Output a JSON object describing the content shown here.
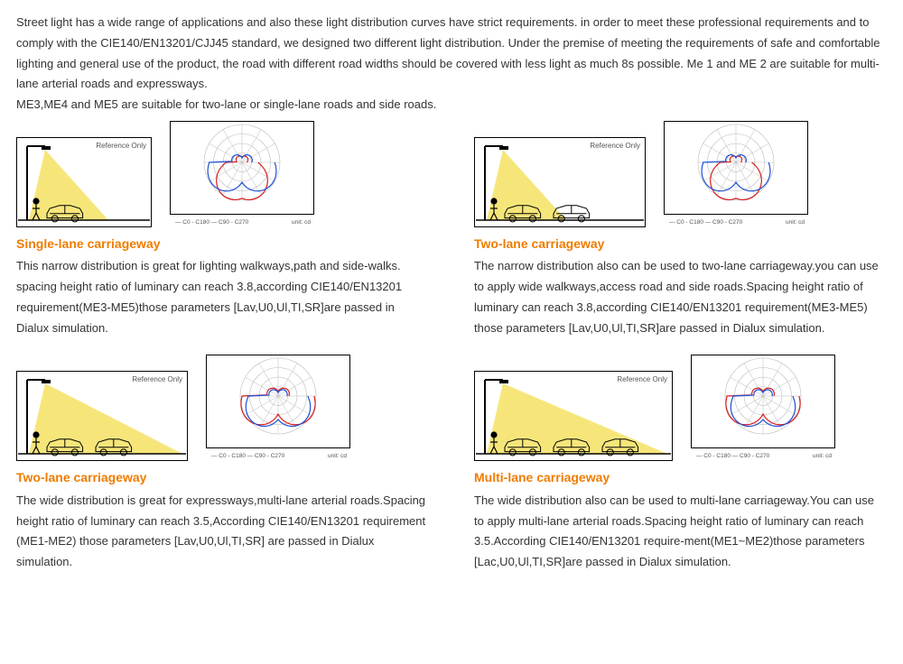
{
  "intro": "Street light has a wide range of applications and also these light distribution curves have strict requirements. in order to meet these professional requirements and to comply with the CIE140/EN13201/CJJ45 standard, we designed two different light distribution. Under the premise of meeting the requirements of safe and comfortable lighting and general use of the product, the road with different road widths should be covered with less light as much 8s possible. Me 1 and ME 2 are suitable for multi-lane arterial roads and expressways.\nME3,ME4 and ME5 are suitable for two-lane or single-lane roads and side roads.",
  "ref_label": "Reference Only",
  "polar_caption_left": "— C0 - C180  — C90 - C270",
  "polar_caption_right": "unit: cd",
  "colors": {
    "heading": "#ef7c00",
    "text": "#333333",
    "light_fill": "#f6e67a",
    "pole": "#000000",
    "polar_grid": "#bbbbbb",
    "polar_frame": "#000000",
    "curve_red": "#d81e1e",
    "curve_blue": "#1e4fd8"
  },
  "cells": [
    {
      "title": "Single-lane carriageway",
      "cars": 1,
      "beam": "narrow",
      "illu_w": 150,
      "polar": "narrow",
      "desc": "This narrow distribution is great for lighting walkways,path and side-walks. spacing height ratio of luminary can reach 3.8,according CIE140/EN13201 requirement(ME3-ME5)those parameters [Lav,U0,Ul,TI,SR]are passed in Dialux simulation."
    },
    {
      "title": "Two-lane carriageway",
      "cars": 2,
      "beam": "narrow",
      "illu_w": 190,
      "polar": "narrow",
      "desc": "The narrow distribution also can be used to two-lane carriageway.you can use to apply wide walkways,access road and side roads.Spacing height ratio of luminary can reach 3.8,according CIE140/EN13201 requirement(ME3-ME5) those parameters [Lav,U0,Ul,TI,SR]are passed in Dialux simulation."
    },
    {
      "title": "Two-lane carriageway",
      "cars": 2,
      "beam": "wide",
      "illu_w": 190,
      "polar": "wide",
      "desc": "The wide distribution is great for expressways,multi-lane arterial roads.Spacing height ratio of luminary can reach 3.5,According CIE140/EN13201 requirement (ME1-ME2) those parameters [Lav,U0,Ul,TI,SR] are passed in Dialux simulation."
    },
    {
      "title": "Multi-lane carriageway",
      "cars": 3,
      "beam": "wide",
      "illu_w": 220,
      "polar": "wide",
      "desc": "The wide distribution also can be used to multi-lane carriageway.You can use to apply multi-lane arterial roads.Spacing height ratio of luminary can reach 3.5.According CIE140/EN13201 require-ment(ME1~ME2)those parameters [Lac,U0,Ul,TI,SR]are passed in Dialux simulation."
    }
  ]
}
